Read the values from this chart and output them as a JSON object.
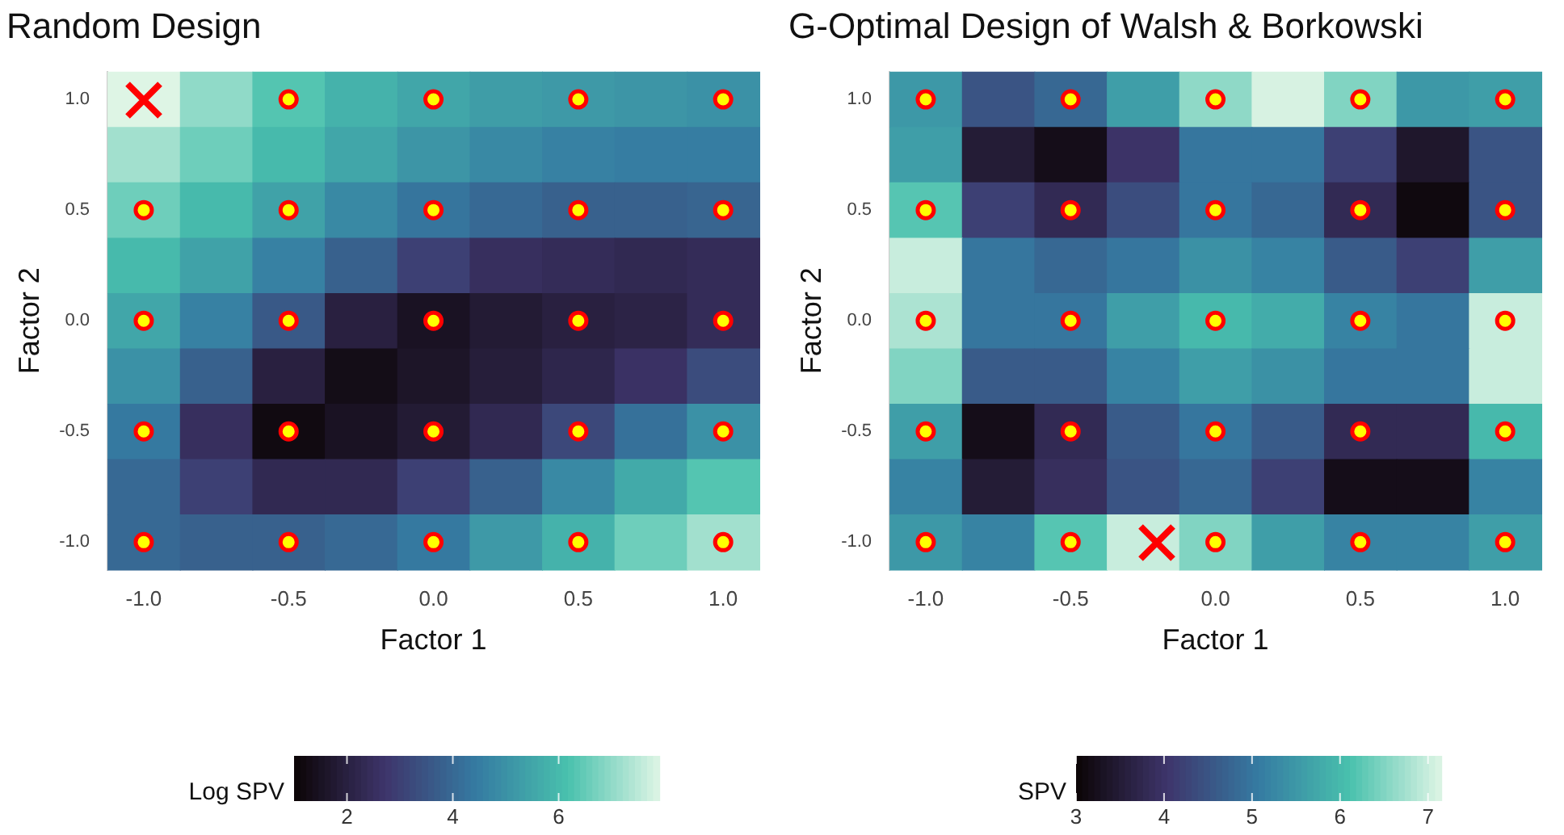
{
  "chart_data": [
    {
      "type": "heatmap",
      "title": "Random Design",
      "xlabel": "Factor 1",
      "ylabel": "Factor 2",
      "clabel": "Log SPV",
      "categories": [
        "-1.0",
        null,
        "-0.5",
        null,
        "0.0",
        null,
        "0.5",
        null,
        "1.0"
      ],
      "ylim": [
        -1.125,
        1.125
      ],
      "yticks": [
        {
          "value": -1,
          "label": "-1.0"
        },
        {
          "value": -0.5,
          "label": "-0.5"
        },
        {
          "value": 0,
          "label": "0.0"
        },
        {
          "value": 0.5,
          "label": "0.5"
        },
        {
          "value": 1,
          "label": "1.0"
        }
      ],
      "cells": [
        [
          7.9,
          7.0,
          6.3,
          5.8,
          5.5,
          5.3,
          5.2,
          5.1,
          5.0
        ],
        [
          7.2,
          6.6,
          6.0,
          5.5,
          5.1,
          4.8,
          4.6,
          4.5,
          4.5
        ],
        [
          6.6,
          6.0,
          5.4,
          4.8,
          4.3,
          4.0,
          3.8,
          3.8,
          3.9
        ],
        [
          6.0,
          5.4,
          4.6,
          3.8,
          3.0,
          2.5,
          2.4,
          2.3,
          2.4
        ],
        [
          5.5,
          4.6,
          3.6,
          2.0,
          1.5,
          1.8,
          2.0,
          2.1,
          2.4
        ],
        [
          5.0,
          3.8,
          2.0,
          1.3,
          1.6,
          1.9,
          2.2,
          2.6,
          3.3
        ],
        [
          4.4,
          2.5,
          1.2,
          1.5,
          1.8,
          2.3,
          3.2,
          4.2,
          5.0
        ],
        [
          4.0,
          3.0,
          2.3,
          2.3,
          3.0,
          3.8,
          4.8,
          5.6,
          6.3
        ],
        [
          4.0,
          3.8,
          3.8,
          4.0,
          4.4,
          5.2,
          5.8,
          6.6,
          7.2
        ]
      ],
      "clim": [
        1.0,
        7.9
      ],
      "cticks": [
        2,
        4,
        6
      ],
      "series": [
        {
          "type": "scatter",
          "marker": "circle",
          "color": "#ffff00",
          "x": [
            "-0.5",
            "0.0",
            "0.5",
            "1.0",
            "-1.0",
            "-0.5",
            "0.0",
            "0.5",
            "1.0",
            "-1.0",
            "-0.5",
            "0.0",
            "0.5",
            "1.0",
            "-1.0",
            "-0.5",
            "0.0",
            "0.5",
            "1.0",
            "-1.0",
            "-0.5",
            "0.0",
            "0.5",
            "1.0"
          ],
          "values": [
            1,
            1,
            1,
            1,
            0.5,
            0.5,
            0.5,
            0.5,
            0.5,
            0,
            0,
            0,
            0,
            0,
            -0.5,
            -0.5,
            -0.5,
            -0.5,
            -0.5,
            -1,
            -1,
            -1,
            -1,
            -1
          ]
        }
      ]
    },
    {
      "type": "heatmap",
      "title": "G-Optimal Design of Walsh & Borkowski",
      "xlabel": "Factor 1",
      "ylabel": "Factor 2",
      "clabel": "SPV",
      "categories": [
        "-1.0",
        null,
        "-0.5",
        null,
        "0.0",
        null,
        "0.5",
        null,
        "1.0"
      ],
      "ylim": [
        -1.125,
        1.125
      ],
      "yticks": [
        {
          "value": -1,
          "label": "-1.0"
        },
        {
          "value": -0.5,
          "label": "-0.5"
        },
        {
          "value": 0,
          "label": "0.0"
        },
        {
          "value": 0.5,
          "label": "0.5"
        },
        {
          "value": 1,
          "label": "1.0"
        }
      ],
      "cells": [
        [
          5.5,
          4.5,
          4.8,
          5.6,
          6.6,
          7.1,
          6.5,
          5.5,
          5.6
        ],
        [
          5.6,
          3.5,
          3.2,
          4.0,
          5.0,
          5.0,
          4.2,
          3.4,
          4.5
        ],
        [
          6.2,
          4.2,
          3.8,
          4.4,
          5.0,
          4.8,
          3.8,
          3.1,
          4.5
        ],
        [
          7.0,
          5.0,
          4.8,
          5.0,
          5.4,
          5.2,
          4.6,
          4.2,
          5.6
        ],
        [
          6.8,
          5.0,
          5.0,
          5.6,
          6.0,
          5.8,
          5.2,
          5.0,
          7.0
        ],
        [
          6.5,
          4.6,
          4.6,
          5.2,
          5.6,
          5.4,
          5.0,
          5.0,
          7.0
        ],
        [
          5.6,
          3.2,
          3.8,
          4.6,
          5.0,
          4.6,
          3.8,
          3.8,
          6.0
        ],
        [
          5.2,
          3.5,
          3.9,
          4.5,
          4.8,
          4.2,
          3.2,
          3.2,
          5.2
        ],
        [
          5.5,
          5.2,
          6.2,
          7.0,
          6.5,
          5.6,
          5.2,
          5.2,
          5.6
        ]
      ],
      "clim": [
        3,
        7.15
      ],
      "cticks": [
        3,
        4,
        5,
        6,
        7
      ],
      "series": [
        {
          "type": "scatter",
          "marker": "circle",
          "color": "#ffff00",
          "x": [
            "-1.0",
            "-0.5",
            "0.0",
            "0.5",
            "1.0",
            "-1.0",
            "-0.5",
            "0.0",
            "0.5",
            "1.0",
            "-1.0",
            "-0.5",
            "0.0",
            "0.5",
            "1.0",
            "-1.0",
            "-0.5",
            "0.0",
            "0.5",
            "1.0",
            "-1.0",
            "-0.5",
            "0.0",
            "0.5",
            "1.0"
          ],
          "values": [
            1,
            1,
            1,
            1,
            1,
            0.5,
            0.5,
            0.5,
            0.5,
            0.5,
            0,
            0,
            0,
            0,
            0,
            -0.5,
            -0.5,
            -0.5,
            -0.5,
            -0.5,
            -1,
            -1,
            -1,
            -1,
            -1
          ]
        }
      ]
    }
  ]
}
